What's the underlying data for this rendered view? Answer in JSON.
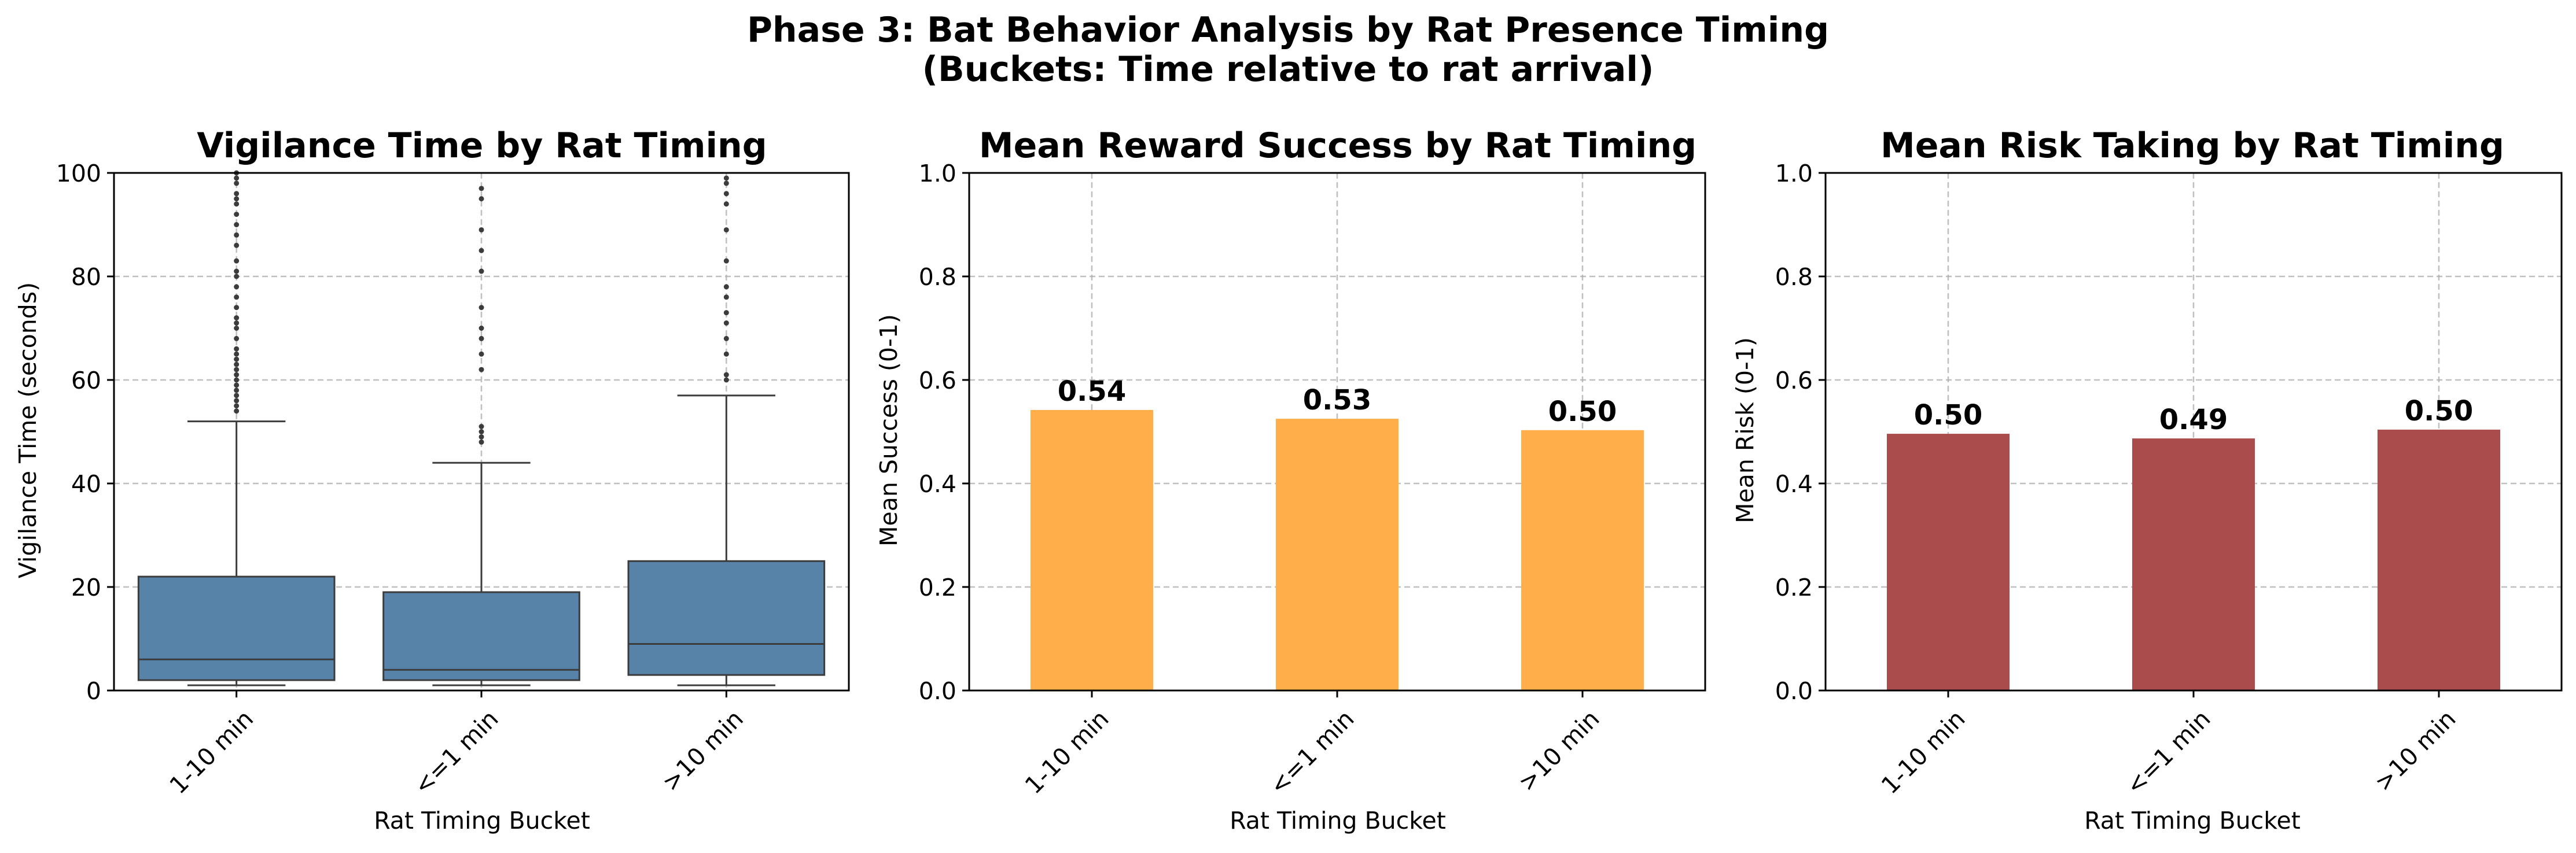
{
  "suptitle_line1": "Phase 3: Bat Behavior Analysis by Rat Presence Timing",
  "suptitle_line2": "(Buckets: Time relative to rat arrival)",
  "colors": {
    "box": "#5783a9",
    "success": "#ffae4a",
    "risk": "#ab4c4c",
    "grid": "#b0b0b0",
    "outlier": "#3c3c3c"
  },
  "chart_data": [
    {
      "type": "box",
      "title": "Vigilance Time by Rat Timing",
      "xlabel": "Rat Timing Bucket",
      "ylabel": "Vigilance Time (seconds)",
      "categories": [
        "1-10 min",
        "<=1 min",
        ">10 min"
      ],
      "ylim": [
        0,
        100
      ],
      "yticks": [
        0,
        20,
        40,
        60,
        80,
        100
      ],
      "grid": true,
      "boxes": [
        {
          "whisker_low": 1,
          "q1": 2,
          "median": 6,
          "q3": 22,
          "whisker_high": 52,
          "outliers": [
            54,
            55,
            56,
            57,
            58,
            59,
            60,
            61,
            62,
            63,
            64,
            65,
            66,
            68,
            70,
            71,
            72,
            74,
            76,
            78,
            80,
            81,
            83,
            86,
            88,
            90,
            92,
            94,
            95,
            96,
            98,
            99,
            100
          ]
        },
        {
          "whisker_low": 1,
          "q1": 2,
          "median": 4,
          "q3": 19,
          "whisker_high": 44,
          "outliers": [
            48,
            49,
            50,
            51,
            62,
            65,
            68,
            70,
            74,
            81,
            85,
            89,
            95,
            97
          ]
        },
        {
          "whisker_low": 1,
          "q1": 3,
          "median": 9,
          "q3": 25,
          "whisker_high": 57,
          "outliers": [
            60,
            61,
            65,
            68,
            71,
            73,
            76,
            78,
            83,
            89,
            94,
            96,
            98,
            99
          ]
        }
      ]
    },
    {
      "type": "bar",
      "title": "Mean Reward Success by Rat Timing",
      "xlabel": "Rat Timing Bucket",
      "ylabel": "Mean Success (0-1)",
      "categories": [
        "1-10 min",
        "<=1 min",
        ">10 min"
      ],
      "values": [
        0.542,
        0.525,
        0.503
      ],
      "labels": [
        "0.54",
        "0.53",
        "0.50"
      ],
      "ylim": [
        0,
        1.0
      ],
      "yticks": [
        "0.0",
        "0.2",
        "0.4",
        "0.6",
        "0.8",
        "1.0"
      ],
      "grid": true
    },
    {
      "type": "bar",
      "title": "Mean Risk Taking by Rat Timing",
      "xlabel": "Rat Timing Bucket",
      "ylabel": "Mean Risk (0-1)",
      "categories": [
        "1-10 min",
        "<=1 min",
        ">10 min"
      ],
      "values": [
        0.496,
        0.487,
        0.504
      ],
      "labels": [
        "0.50",
        "0.49",
        "0.50"
      ],
      "ylim": [
        0,
        1.0
      ],
      "yticks": [
        "0.0",
        "0.2",
        "0.4",
        "0.6",
        "0.8",
        "1.0"
      ],
      "grid": true
    }
  ]
}
